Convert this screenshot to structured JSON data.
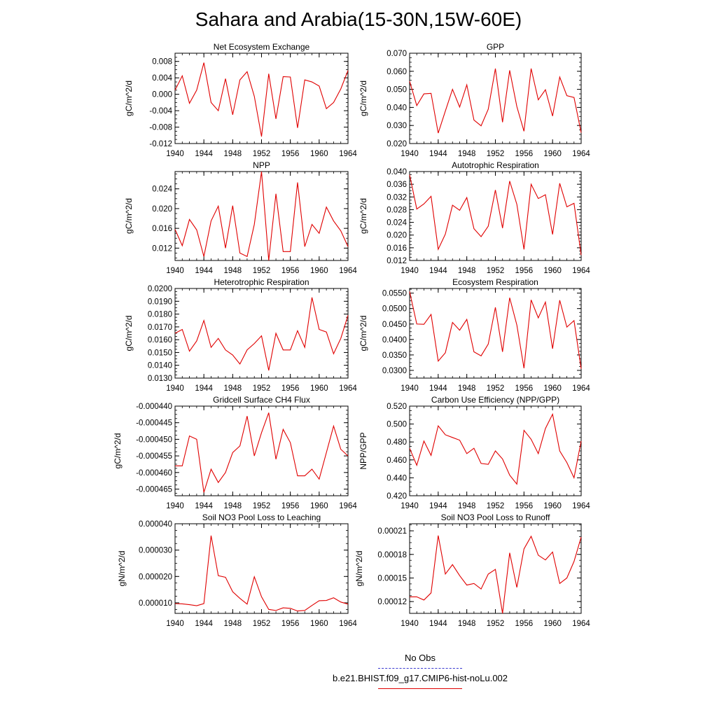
{
  "title": "Sahara and Arabia(15-30N,15W-60E)",
  "colors": {
    "series": "#e00000",
    "obs": "#3a3ad0"
  },
  "legend": {
    "obs_label": "No Obs",
    "case_label": "b.e21.BHIST.f09_g17.CMIP6-hist-noLu.002"
  },
  "chart_data": [
    {
      "type": "line",
      "title": "Net Ecosystem Exchange",
      "ylabel": "gC/m^2/d",
      "x": [
        1940,
        1941,
        1942,
        1943,
        1944,
        1945,
        1946,
        1947,
        1948,
        1949,
        1950,
        1951,
        1952,
        1953,
        1954,
        1955,
        1956,
        1957,
        1958,
        1959,
        1960,
        1961,
        1962,
        1963,
        1964
      ],
      "values": [
        0.001,
        0.0045,
        -0.0022,
        0.001,
        0.0077,
        -0.002,
        -0.004,
        0.0038,
        -0.005,
        0.0035,
        0.0055,
        -0.0005,
        -0.0103,
        0.005,
        -0.006,
        0.0043,
        0.0042,
        -0.0082,
        0.0035,
        0.003,
        0.002,
        -0.0035,
        -0.002,
        0.0013,
        0.0058
      ],
      "xlim": [
        1940,
        1964
      ],
      "ylim": [
        -0.012,
        0.01
      ],
      "yticks": [
        -0.012,
        -0.008,
        -0.004,
        0.0,
        0.004,
        0.008
      ],
      "ytick_labels": [
        "-0.012",
        "-0.008",
        "-0.004",
        "0.000",
        "0.004",
        "0.008"
      ],
      "xticks": [
        1940,
        1944,
        1948,
        1952,
        1956,
        1960,
        1964
      ],
      "xtick_labels": [
        "1940",
        "1944",
        "1948",
        "1952",
        "1956",
        "1960",
        "1964"
      ],
      "ytick_minor": 0.001
    },
    {
      "type": "line",
      "title": "GPP",
      "ylabel": "gC/m^2/d",
      "x": [
        1940,
        1941,
        1942,
        1943,
        1944,
        1945,
        1946,
        1947,
        1948,
        1949,
        1950,
        1951,
        1952,
        1953,
        1954,
        1955,
        1956,
        1957,
        1958,
        1959,
        1960,
        1961,
        1962,
        1963,
        1964
      ],
      "values": [
        0.0545,
        0.041,
        0.0475,
        0.0478,
        0.0258,
        0.038,
        0.05,
        0.0402,
        0.0525,
        0.033,
        0.0298,
        0.039,
        0.0615,
        0.0318,
        0.0605,
        0.0405,
        0.0268,
        0.0615,
        0.0442,
        0.0498,
        0.0352,
        0.0568,
        0.0465,
        0.0455,
        0.026
      ],
      "xlim": [
        1940,
        1964
      ],
      "ylim": [
        0.02,
        0.07
      ],
      "yticks": [
        0.02,
        0.03,
        0.04,
        0.05,
        0.06,
        0.07
      ],
      "ytick_labels": [
        "0.020",
        "0.030",
        "0.040",
        "0.050",
        "0.060",
        "0.070"
      ],
      "xticks": [
        1940,
        1944,
        1948,
        1952,
        1956,
        1960,
        1964
      ],
      "xtick_labels": [
        "1940",
        "1944",
        "1948",
        "1952",
        "1956",
        "1960",
        "1964"
      ],
      "ytick_minor": 0.0025
    },
    {
      "type": "line",
      "title": "NPP",
      "ylabel": "gC/m^2/d",
      "x": [
        1940,
        1941,
        1942,
        1943,
        1944,
        1945,
        1946,
        1947,
        1948,
        1949,
        1950,
        1951,
        1952,
        1953,
        1954,
        1955,
        1956,
        1957,
        1958,
        1959,
        1960,
        1961,
        1962,
        1963,
        1964
      ],
      "values": [
        0.0158,
        0.0125,
        0.0178,
        0.0157,
        0.0103,
        0.0175,
        0.0205,
        0.012,
        0.0206,
        0.011,
        0.0103,
        0.0168,
        0.0275,
        0.0095,
        0.023,
        0.0113,
        0.0113,
        0.0253,
        0.0123,
        0.0168,
        0.015,
        0.0203,
        0.0175,
        0.0155,
        0.0123
      ],
      "xlim": [
        1940,
        1964
      ],
      "ylim": [
        0.0095,
        0.0275
      ],
      "yticks": [
        0.012,
        0.016,
        0.02,
        0.024
      ],
      "ytick_labels": [
        "0.012",
        "0.016",
        "0.020",
        "0.024"
      ],
      "xticks": [
        1940,
        1944,
        1948,
        1952,
        1956,
        1960,
        1964
      ],
      "xtick_labels": [
        "1940",
        "1944",
        "1948",
        "1952",
        "1956",
        "1960",
        "1964"
      ],
      "ytick_minor": 0.001
    },
    {
      "type": "line",
      "title": "Autotrophic Respiration",
      "ylabel": "gC/m^2/d",
      "x": [
        1940,
        1941,
        1942,
        1943,
        1944,
        1945,
        1946,
        1947,
        1948,
        1949,
        1950,
        1951,
        1952,
        1953,
        1954,
        1955,
        1956,
        1957,
        1958,
        1959,
        1960,
        1961,
        1962,
        1963,
        1964
      ],
      "values": [
        0.039,
        0.0282,
        0.0298,
        0.0322,
        0.0155,
        0.0203,
        0.0294,
        0.0278,
        0.0318,
        0.022,
        0.0195,
        0.0228,
        0.0342,
        0.0222,
        0.037,
        0.0297,
        0.0155,
        0.036,
        0.0315,
        0.0327,
        0.0202,
        0.0363,
        0.0289,
        0.03,
        0.0137
      ],
      "xlim": [
        1940,
        1964
      ],
      "ylim": [
        0.012,
        0.04
      ],
      "yticks": [
        0.012,
        0.016,
        0.02,
        0.024,
        0.028,
        0.032,
        0.036,
        0.04
      ],
      "ytick_labels": [
        "0.012",
        "0.016",
        "0.020",
        "0.024",
        "0.028",
        "0.032",
        "0.036",
        "0.040"
      ],
      "xticks": [
        1940,
        1944,
        1948,
        1952,
        1956,
        1960,
        1964
      ],
      "xtick_labels": [
        "1940",
        "1944",
        "1948",
        "1952",
        "1956",
        "1960",
        "1964"
      ],
      "ytick_minor": 0.001
    },
    {
      "type": "line",
      "title": "Heterotrophic Respiration",
      "ylabel": "gC/m^2/d",
      "x": [
        1940,
        1941,
        1942,
        1943,
        1944,
        1945,
        1946,
        1947,
        1948,
        1949,
        1950,
        1951,
        1952,
        1953,
        1954,
        1955,
        1956,
        1957,
        1958,
        1959,
        1960,
        1961,
        1962,
        1963,
        1964
      ],
      "values": [
        0.0165,
        0.0168,
        0.0151,
        0.0159,
        0.0175,
        0.0154,
        0.0161,
        0.0152,
        0.0148,
        0.0141,
        0.0152,
        0.0157,
        0.0163,
        0.0136,
        0.0165,
        0.0152,
        0.0152,
        0.0167,
        0.0154,
        0.0193,
        0.0168,
        0.0166,
        0.0149,
        0.0161,
        0.0179
      ],
      "xlim": [
        1940,
        1964
      ],
      "ylim": [
        0.013,
        0.02
      ],
      "yticks": [
        0.013,
        0.014,
        0.015,
        0.016,
        0.017,
        0.018,
        0.019,
        0.02
      ],
      "ytick_labels": [
        "0.0130",
        "0.0140",
        "0.0150",
        "0.0160",
        "0.0170",
        "0.0180",
        "0.0190",
        "0.0200"
      ],
      "xticks": [
        1940,
        1944,
        1948,
        1952,
        1956,
        1960,
        1964
      ],
      "xtick_labels": [
        "1940",
        "1944",
        "1948",
        "1952",
        "1956",
        "1960",
        "1964"
      ],
      "ytick_minor": 0.00025
    },
    {
      "type": "line",
      "title": "Ecosystem Respiration",
      "ylabel": "gC/m^2/d",
      "x": [
        1940,
        1941,
        1942,
        1943,
        1944,
        1945,
        1946,
        1947,
        1948,
        1949,
        1950,
        1951,
        1952,
        1953,
        1954,
        1955,
        1956,
        1957,
        1958,
        1959,
        1960,
        1961,
        1962,
        1963,
        1964
      ],
      "values": [
        0.0555,
        0.045,
        0.0449,
        0.0481,
        0.033,
        0.0357,
        0.0455,
        0.043,
        0.0465,
        0.036,
        0.0347,
        0.0385,
        0.0504,
        0.036,
        0.0535,
        0.0447,
        0.0307,
        0.0528,
        0.047,
        0.0521,
        0.037,
        0.0527,
        0.044,
        0.0461,
        0.0305
      ],
      "xlim": [
        1940,
        1964
      ],
      "ylim": [
        0.0275,
        0.0565
      ],
      "yticks": [
        0.03,
        0.035,
        0.04,
        0.045,
        0.05,
        0.055
      ],
      "ytick_labels": [
        "0.0300",
        "0.0350",
        "0.0400",
        "0.0450",
        "0.0500",
        "0.0550"
      ],
      "xticks": [
        1940,
        1944,
        1948,
        1952,
        1956,
        1960,
        1964
      ],
      "xtick_labels": [
        "1940",
        "1944",
        "1948",
        "1952",
        "1956",
        "1960",
        "1964"
      ],
      "ytick_minor": 0.00125
    },
    {
      "type": "line",
      "title": "Gridcell Surface CH4 Flux",
      "ylabel": "gC/m^2/d",
      "x": [
        1940,
        1941,
        1942,
        1943,
        1944,
        1945,
        1946,
        1947,
        1948,
        1949,
        1950,
        1951,
        1952,
        1953,
        1954,
        1955,
        1956,
        1957,
        1958,
        1959,
        1960,
        1961,
        1962,
        1963,
        1964
      ],
      "values": [
        -0.000458,
        -0.000458,
        -0.000449,
        -0.00045,
        -0.000466,
        -0.000459,
        -0.000463,
        -0.00046,
        -0.000454,
        -0.000452,
        -0.000443,
        -0.000455,
        -0.000448,
        -0.000442,
        -0.000456,
        -0.000447,
        -0.000451,
        -0.000461,
        -0.000461,
        -0.000459,
        -0.000462,
        -0.000454,
        -0.000446,
        -0.000453,
        -0.000455
      ],
      "xlim": [
        1940,
        1964
      ],
      "ylim": [
        -0.000467,
        -0.00044
      ],
      "yticks": [
        -0.000465,
        -0.00046,
        -0.000455,
        -0.00045,
        -0.000445,
        -0.00044
      ],
      "ytick_labels": [
        "-0.000465",
        "-0.000460",
        "-0.000455",
        "-0.000450",
        "-0.000445",
        "-0.000440"
      ],
      "xticks": [
        1940,
        1944,
        1948,
        1952,
        1956,
        1960,
        1964
      ],
      "xtick_labels": [
        "1940",
        "1944",
        "1948",
        "1952",
        "1956",
        "1960",
        "1964"
      ],
      "ytick_minor": 1.25e-06
    },
    {
      "type": "line",
      "title": "Carbon Use Efficiency (NPP/GPP)",
      "ylabel": "NPP/GPP",
      "x": [
        1940,
        1941,
        1942,
        1943,
        1944,
        1945,
        1946,
        1947,
        1948,
        1949,
        1950,
        1951,
        1952,
        1953,
        1954,
        1955,
        1956,
        1957,
        1958,
        1959,
        1960,
        1961,
        1962,
        1963,
        1964
      ],
      "values": [
        0.473,
        0.454,
        0.481,
        0.465,
        0.498,
        0.488,
        0.485,
        0.482,
        0.467,
        0.473,
        0.456,
        0.455,
        0.47,
        0.461,
        0.443,
        0.433,
        0.493,
        0.483,
        0.467,
        0.495,
        0.511,
        0.47,
        0.457,
        0.44,
        0.481
      ],
      "xlim": [
        1940,
        1964
      ],
      "ylim": [
        0.42,
        0.52
      ],
      "yticks": [
        0.42,
        0.44,
        0.46,
        0.48,
        0.5,
        0.52
      ],
      "ytick_labels": [
        "0.420",
        "0.440",
        "0.460",
        "0.480",
        "0.500",
        "0.520"
      ],
      "xticks": [
        1940,
        1944,
        1948,
        1952,
        1956,
        1960,
        1964
      ],
      "xtick_labels": [
        "1940",
        "1944",
        "1948",
        "1952",
        "1956",
        "1960",
        "1964"
      ],
      "ytick_minor": 0.005
    },
    {
      "type": "line",
      "title": "Soil NO3 Pool Loss to Leaching",
      "ylabel": "gN/m^2/d",
      "x": [
        1940,
        1941,
        1942,
        1943,
        1944,
        1945,
        1946,
        1947,
        1948,
        1949,
        1950,
        1951,
        1952,
        1953,
        1954,
        1955,
        1956,
        1957,
        1958,
        1959,
        1960,
        1961,
        1962,
        1963,
        1964
      ],
      "values": [
        9.7e-06,
        9.6e-06,
        9.3e-06,
        8.9e-06,
        9.7e-06,
        3.55e-05,
        2.03e-05,
        1.97e-05,
        1.42e-05,
        1.17e-05,
        9.5e-06,
        1.99e-05,
        1.23e-05,
        7.5e-06,
        7.1e-06,
        8.1e-06,
        7.9e-06,
        6.9e-06,
        7.1e-06,
        9e-06,
        1.08e-05,
        1.09e-05,
        1.19e-05,
        1.03e-05,
        9.5e-06
      ],
      "xlim": [
        1940,
        1964
      ],
      "ylim": [
        6e-06,
        4e-05
      ],
      "yticks": [
        1e-05,
        2e-05,
        3e-05,
        4e-05
      ],
      "ytick_labels": [
        "0.000010",
        "0.000020",
        "0.000030",
        "0.000040"
      ],
      "xticks": [
        1940,
        1944,
        1948,
        1952,
        1956,
        1960,
        1964
      ],
      "xtick_labels": [
        "1940",
        "1944",
        "1948",
        "1952",
        "1956",
        "1960",
        "1964"
      ],
      "ytick_minor": 2.5e-06
    },
    {
      "type": "line",
      "title": "Soil NO3 Pool Loss to Runoff",
      "ylabel": "gN/m^2/d",
      "x": [
        1940,
        1941,
        1942,
        1943,
        1944,
        1945,
        1946,
        1947,
        1948,
        1949,
        1950,
        1951,
        1952,
        1953,
        1954,
        1955,
        1956,
        1957,
        1958,
        1959,
        1960,
        1961,
        1962,
        1963,
        1964
      ],
      "values": [
        0.000126,
        0.000126,
        0.000122,
        0.000131,
        0.000204,
        0.000155,
        0.000167,
        0.000153,
        0.000141,
        0.000143,
        0.000136,
        0.000155,
        0.000161,
        0.000105,
        0.000182,
        0.000138,
        0.000187,
        0.000203,
        0.000179,
        0.000173,
        0.000183,
        0.000143,
        0.00015,
        0.000171,
        0.000202
      ],
      "xlim": [
        1940,
        1964
      ],
      "ylim": [
        0.000105,
        0.000219
      ],
      "yticks": [
        0.00012,
        0.00015,
        0.00018,
        0.00021
      ],
      "ytick_labels": [
        "0.00012",
        "0.00015",
        "0.00018",
        "0.00021"
      ],
      "xticks": [
        1940,
        1944,
        1948,
        1952,
        1956,
        1960,
        1964
      ],
      "xtick_labels": [
        "1940",
        "1944",
        "1948",
        "1952",
        "1956",
        "1960",
        "1964"
      ],
      "ytick_minor": 7.5e-06
    }
  ]
}
